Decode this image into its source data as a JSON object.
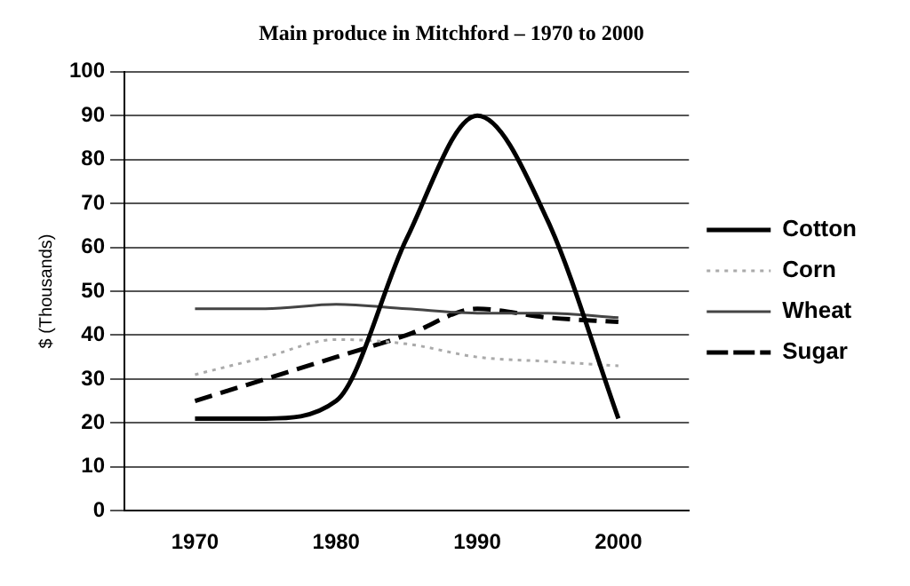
{
  "chart_data": {
    "type": "line",
    "title": "Main produce in Mitchford – 1970 to 2000",
    "ylabel": "$ (Thousands)",
    "x": [
      1970,
      1975,
      1980,
      1985,
      1990,
      1995,
      2000
    ],
    "xlim": [
      1965,
      2005
    ],
    "xticks": [
      1970,
      1980,
      1990,
      2000
    ],
    "ylim": [
      0,
      100
    ],
    "yticks": [
      0,
      10,
      20,
      30,
      40,
      50,
      60,
      70,
      80,
      90,
      100
    ],
    "series": [
      {
        "name": "Cotton",
        "color": "#000000",
        "line_style": "solid",
        "values": [
          21,
          21,
          25,
          62,
          90,
          66,
          21
        ]
      },
      {
        "name": "Corn",
        "color": "#aaaaaa",
        "line_style": "dotted",
        "values": [
          31,
          35,
          39,
          38,
          35,
          34,
          33
        ]
      },
      {
        "name": "Wheat",
        "color": "#444444",
        "line_style": "solid",
        "values": [
          46,
          46,
          47,
          46,
          45,
          45,
          44
        ]
      },
      {
        "name": "Sugar",
        "color": "#000000",
        "line_style": "dashed",
        "values": [
          25,
          30,
          35,
          40,
          46,
          44,
          43
        ]
      }
    ],
    "grid": "y",
    "legend": "right",
    "marker": "none"
  }
}
